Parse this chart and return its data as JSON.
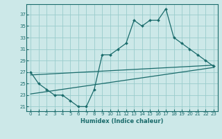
{
  "xlabel": "Humidex (Indice chaleur)",
  "bg_color": "#cce8e8",
  "grid_color": "#99cccc",
  "line_color": "#1a6b6b",
  "xlim": [
    -0.5,
    23.5
  ],
  "ylim": [
    20.2,
    38.8
  ],
  "xticks": [
    0,
    1,
    2,
    3,
    4,
    5,
    6,
    7,
    8,
    9,
    10,
    11,
    12,
    13,
    14,
    15,
    16,
    17,
    18,
    19,
    20,
    21,
    22,
    23
  ],
  "yticks": [
    21,
    23,
    25,
    27,
    29,
    31,
    33,
    35,
    37
  ],
  "main_x": [
    0,
    1,
    2,
    3,
    4,
    5,
    6,
    7,
    8,
    9,
    10,
    11,
    12,
    13,
    14,
    15,
    16,
    17,
    18,
    19,
    20,
    21,
    22,
    23
  ],
  "main_y": [
    27,
    25,
    24,
    23,
    23,
    22,
    21,
    21,
    24,
    30,
    30,
    31,
    32,
    36,
    35,
    36,
    36,
    38,
    33,
    32,
    31,
    30,
    29,
    28
  ],
  "upper_line_x": [
    0,
    23
  ],
  "upper_line_y": [
    26.5,
    28.2
  ],
  "lower_line_x": [
    0,
    23
  ],
  "lower_line_y": [
    23.2,
    27.8
  ]
}
